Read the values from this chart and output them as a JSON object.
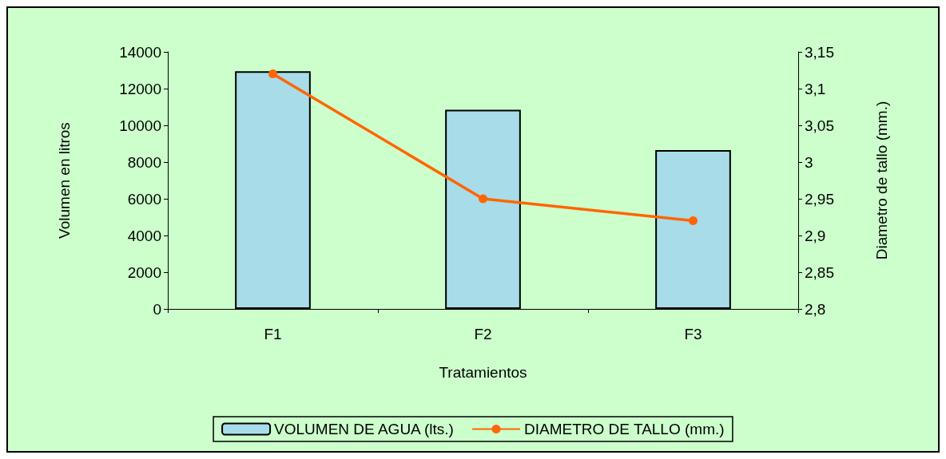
{
  "chart_data": {
    "type": "bar",
    "categories": [
      "F1",
      "F2",
      "F3"
    ],
    "xlabel": "Tratamientos",
    "ylabel": "Volumen en litros",
    "y2label": "Diametro de tallo (mm.)",
    "series": [
      {
        "name": "VOLUMEN DE AGUA (lts.)",
        "color": "#a8dce8",
        "values": [
          12950,
          10850,
          8650
        ]
      },
      {
        "name": "DIAMETRO DE TALLO (mm.)",
        "type": "line",
        "axis": "y2",
        "color": "#ff6600",
        "marker": "circle",
        "values": [
          3.12,
          2.95,
          2.92
        ]
      }
    ],
    "ylim": [
      0,
      14000
    ],
    "yticks": [
      0,
      2000,
      4000,
      6000,
      8000,
      10000,
      12000,
      14000
    ],
    "y2lim": [
      2.8,
      3.15
    ],
    "y2ticks": [
      {
        "value": 2.8,
        "label": "2,8"
      },
      {
        "value": 2.85,
        "label": "2,85"
      },
      {
        "value": 2.9,
        "label": "2,9"
      },
      {
        "value": 2.95,
        "label": "2,95"
      },
      {
        "value": 3,
        "label": "3"
      },
      {
        "value": 3.05,
        "label": "3,05"
      },
      {
        "value": 3.1,
        "label": "3,1"
      },
      {
        "value": 3.15,
        "label": "3,15"
      }
    ],
    "grid": false,
    "legend": "bottom"
  }
}
